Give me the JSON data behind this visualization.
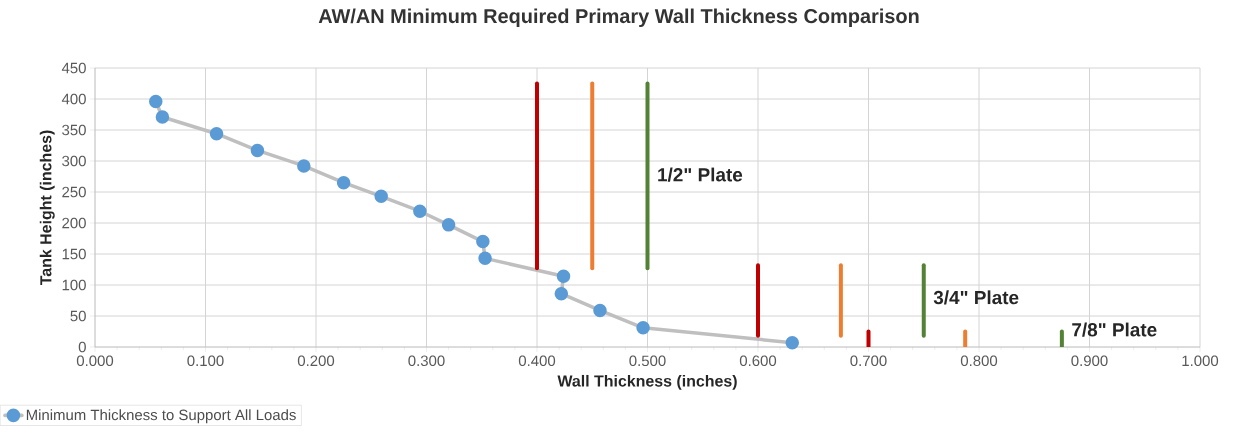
{
  "chart_data": {
    "type": "line",
    "title": "AW/AN Minimum Required Primary Wall Thickness Comparison",
    "xlabel": "Wall Thickness  (inches)",
    "ylabel": "Tank Height (inches)",
    "xlim": [
      0,
      1
    ],
    "ylim": [
      0,
      450
    ],
    "xticks": [
      {
        "value": 0,
        "label": "0.000"
      },
      {
        "value": 0.1,
        "label": "0.100"
      },
      {
        "value": 0.2,
        "label": "0.200"
      },
      {
        "value": 0.3,
        "label": "0.300"
      },
      {
        "value": 0.4,
        "label": "0.400"
      },
      {
        "value": 0.5,
        "label": "0.500"
      },
      {
        "value": 0.6,
        "label": "0.600"
      },
      {
        "value": 0.7,
        "label": "0.700"
      },
      {
        "value": 0.8,
        "label": "0.800"
      },
      {
        "value": 0.9,
        "label": "0.900"
      },
      {
        "value": 1,
        "label": "1.000"
      }
    ],
    "yticks": [
      0,
      50,
      100,
      150,
      200,
      250,
      300,
      350,
      400,
      450
    ],
    "grid": true,
    "legend": "bottom left",
    "series": [
      {
        "name": "Minimum Thickness to Support All Loads",
        "color": "#5b9bd5",
        "marker": "circle",
        "x": [
          0.055,
          0.061,
          0.11,
          0.147,
          0.189,
          0.225,
          0.259,
          0.294,
          0.32,
          0.351,
          0.353,
          0.424,
          0.422,
          0.457,
          0.496,
          0.631
        ],
        "values": [
          396,
          371,
          344,
          317,
          292,
          265,
          243,
          219,
          197,
          170,
          143,
          114,
          86,
          59,
          31,
          7
        ]
      },
      {
        "color": "#c00000",
        "x": [
          0.4,
          0.4
        ],
        "values": [
          127,
          425
        ]
      },
      {
        "color": "#ed7d31",
        "x": [
          0.45,
          0.45
        ],
        "values": [
          127,
          425
        ]
      },
      {
        "color": "#548235",
        "x": [
          0.5,
          0.5
        ],
        "values": [
          127,
          425
        ]
      },
      {
        "color": "#c00000",
        "x": [
          0.6,
          0.6
        ],
        "values": [
          18,
          132
        ]
      },
      {
        "color": "#ed7d31",
        "x": [
          0.675,
          0.675
        ],
        "values": [
          18,
          132
        ]
      },
      {
        "color": "#548235",
        "x": [
          0.75,
          0.75
        ],
        "values": [
          18,
          132
        ]
      },
      {
        "color": "#c00000",
        "x": [
          0.7,
          0.7
        ],
        "values": [
          0,
          25
        ]
      },
      {
        "color": "#ed7d31",
        "x": [
          0.7875,
          0.7875
        ],
        "values": [
          0,
          25
        ]
      },
      {
        "color": "#548235",
        "x": [
          0.875,
          0.875
        ],
        "values": [
          0,
          25
        ]
      }
    ],
    "annotations": [
      {
        "text": "1/2\" Plate",
        "x": 0.5,
        "y": 278
      },
      {
        "text": "3/4\" Plate",
        "x": 0.75,
        "y": 80
      },
      {
        "text": "7/8\" Plate",
        "x": 0.875,
        "y": 28
      }
    ]
  }
}
